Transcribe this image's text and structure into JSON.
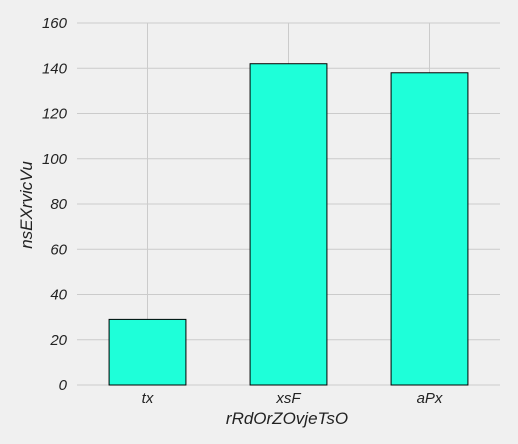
{
  "chart_data": {
    "type": "bar",
    "categories": [
      "tx",
      "xsF",
      "aPx"
    ],
    "values": [
      29,
      142,
      138
    ],
    "xlabel": "rRdOrZOvjeTsO",
    "ylabel": "nsEXrvicVu",
    "ylim": [
      0,
      160
    ],
    "yticks": [
      0,
      20,
      40,
      60,
      80,
      100,
      120,
      140,
      160
    ],
    "grid": true,
    "bar_color": "#1effd9",
    "background_color": "#f0f0f0",
    "grid_color": "#cbcbcb"
  }
}
